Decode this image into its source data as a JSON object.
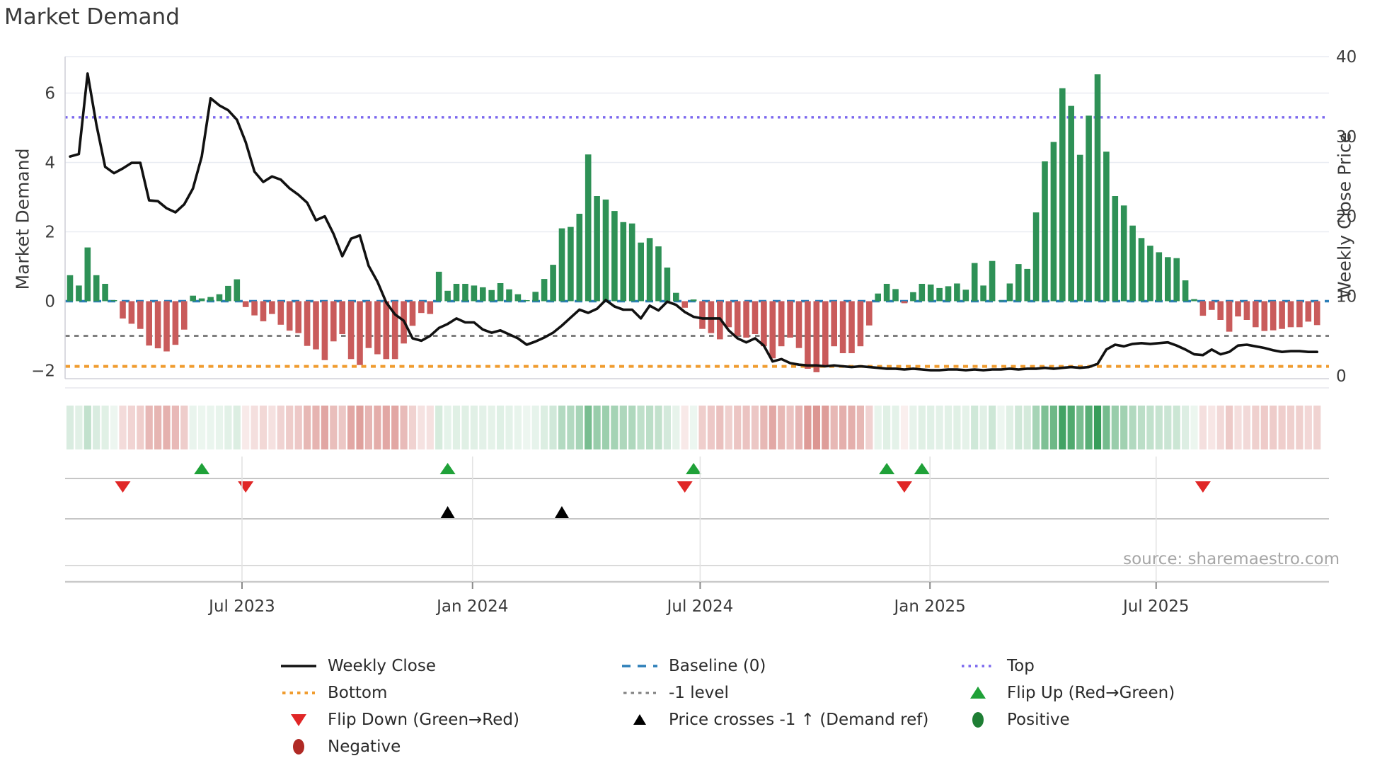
{
  "title": "Market Demand",
  "source": "source: sharemaestro.com",
  "axis": {
    "left_label": "Market Demand",
    "right_label": "Weekly Close Price",
    "left_ticks": [
      {
        "v": 6,
        "label": "6"
      },
      {
        "v": 4,
        "label": "4"
      },
      {
        "v": 2,
        "label": "2"
      },
      {
        "v": 0,
        "label": "0"
      },
      {
        "v": -2,
        "label": "−2"
      }
    ],
    "right_ticks": [
      {
        "v": 40,
        "label": "40"
      },
      {
        "v": 30,
        "label": "30"
      },
      {
        "v": 20,
        "label": "20"
      },
      {
        "v": 10,
        "label": "10"
      },
      {
        "v": 0,
        "label": "0"
      }
    ]
  },
  "colors": {
    "green_bar": "#2e9156",
    "red_bar": "#c95b5b",
    "price_line": "#111111",
    "baseline": "#2c7fb8",
    "top": "#7b68ee",
    "bottom": "#f09c2f",
    "minus1": "#7f7f7f",
    "flip_up": "#1fa138",
    "flip_down": "#e02626",
    "cross": "#000000",
    "positive": "#1e7e34",
    "negative": "#b02a25",
    "grid": "#e9ecf2",
    "spine": "#d0d0d8",
    "sep_line": "#c6c6c6",
    "axis_line": "#c9c9c9",
    "tick": "#3d3d3d",
    "xlabel": "#3a3a3a",
    "source": "#a6a6a6"
  },
  "legend": {
    "items": [
      {
        "type": "line-black",
        "label": "Weekly Close"
      },
      {
        "type": "dash-blue",
        "label": "Baseline (0)"
      },
      {
        "type": "dot-purple",
        "label": "Top"
      },
      {
        "type": "dot-orange",
        "label": "Bottom"
      },
      {
        "type": "dot-gray",
        "label": "-1 level"
      },
      {
        "type": "tri-up-green",
        "label": "Flip Up (Red→Green)"
      },
      {
        "type": "tri-down-red",
        "label": "Flip Down (Green→Red)"
      },
      {
        "type": "tri-up-black",
        "label": "Price crosses -1 ↑ (Demand ref)"
      },
      {
        "type": "circle-green",
        "label": "Positive"
      },
      {
        "type": "circle-red",
        "label": "Negative"
      }
    ]
  },
  "chart_data": {
    "type": "bar+line",
    "title": "Market Demand",
    "ylabel_left": "Market Demand",
    "ylabel_right": "Weekly Close Price",
    "x_unit": "weekly, Feb 2023 – Nov 2025",
    "weeks": 143,
    "x_ticks": [
      {
        "pos": 19.58,
        "label": "Jul 2023"
      },
      {
        "pos": 45.83,
        "label": "Jan 2024"
      },
      {
        "pos": 71.75,
        "label": "Jul 2024"
      },
      {
        "pos": 97.92,
        "label": "Jan 2025"
      },
      {
        "pos": 123.67,
        "label": "Jul 2025"
      }
    ],
    "demand_axis_range": [
      -2.25,
      7.05
    ],
    "price_axis_range": [
      -0.4,
      40.1
    ],
    "ref_lines": {
      "baseline": 0,
      "top": 5.3,
      "bottom": -1.88,
      "minus1": -1
    },
    "demand": [
      0.75,
      0.45,
      1.55,
      0.75,
      0.5,
      0.03,
      -0.5,
      -0.65,
      -0.8,
      -1.28,
      -1.36,
      -1.45,
      -1.26,
      -0.82,
      0.16,
      0.08,
      0.12,
      0.2,
      0.44,
      0.63,
      -0.17,
      -0.41,
      -0.58,
      -0.37,
      -0.68,
      -0.85,
      -0.92,
      -1.29,
      -1.39,
      -1.7,
      -1.16,
      -0.95,
      -1.67,
      -1.84,
      -1.35,
      -1.53,
      -1.67,
      -1.67,
      -1.22,
      -0.71,
      -0.34,
      -0.37,
      0.85,
      0.3,
      0.5,
      0.5,
      0.45,
      0.4,
      0.32,
      0.52,
      0.34,
      0.2,
      0.03,
      0.27,
      0.64,
      1.05,
      2.1,
      2.14,
      2.52,
      4.23,
      3.03,
      2.93,
      2.6,
      2.28,
      2.24,
      1.69,
      1.82,
      1.58,
      0.97,
      0.24,
      -0.19,
      0.05,
      -0.8,
      -0.92,
      -1.1,
      -0.75,
      -1.0,
      -1.05,
      -0.95,
      -1.3,
      -1.65,
      -1.3,
      -1.05,
      -1.35,
      -1.95,
      -2.05,
      -1.9,
      -1.3,
      -1.5,
      -1.5,
      -1.3,
      -0.7,
      0.22,
      0.5,
      0.35,
      -0.06,
      0.26,
      0.5,
      0.48,
      0.38,
      0.43,
      0.51,
      0.33,
      1.1,
      0.45,
      1.16,
      0.02,
      0.51,
      1.07,
      0.93,
      2.56,
      4.03,
      4.59,
      6.14,
      5.63,
      4.22,
      5.35,
      6.54,
      4.31,
      3.03,
      2.76,
      2.18,
      1.82,
      1.6,
      1.41,
      1.27,
      1.24,
      0.6,
      0.06,
      -0.42,
      -0.25,
      -0.54,
      -0.88,
      -0.44,
      -0.54,
      -0.75,
      -0.86,
      -0.84,
      -0.8,
      -0.75,
      -0.75,
      -0.59,
      -0.69
    ],
    "price": [
      27.5,
      27.8,
      37.9,
      31.5,
      26.2,
      25.4,
      26.0,
      26.7,
      26.7,
      22.0,
      21.9,
      21.0,
      20.5,
      21.5,
      23.5,
      27.5,
      34.8,
      33.9,
      33.3,
      32.1,
      29.3,
      25.6,
      24.3,
      25.0,
      24.6,
      23.5,
      22.7,
      21.7,
      19.5,
      20.0,
      17.8,
      15.0,
      17.2,
      17.6,
      13.8,
      11.8,
      9.2,
      7.7,
      6.9,
      4.7,
      4.4,
      5.0,
      6.0,
      6.5,
      7.2,
      6.7,
      6.7,
      5.8,
      5.4,
      5.7,
      5.2,
      4.7,
      3.9,
      4.3,
      4.8,
      5.4,
      6.3,
      7.3,
      8.3,
      7.9,
      8.4,
      9.5,
      8.7,
      8.3,
      8.3,
      7.2,
      8.8,
      8.2,
      9.3,
      8.9,
      8.0,
      7.4,
      7.2,
      7.2,
      7.2,
      5.7,
      4.7,
      4.2,
      4.7,
      3.8,
      1.8,
      2.1,
      1.6,
      1.4,
      1.3,
      1.3,
      1.2,
      1.3,
      1.2,
      1.1,
      1.2,
      1.1,
      1.0,
      0.9,
      0.9,
      0.8,
      0.9,
      0.8,
      0.7,
      0.7,
      0.8,
      0.8,
      0.7,
      0.8,
      0.7,
      0.8,
      0.8,
      0.9,
      0.8,
      0.9,
      0.9,
      1.0,
      0.9,
      1.0,
      1.1,
      1.0,
      1.1,
      1.5,
      3.3,
      3.9,
      3.7,
      4.0,
      4.1,
      4.0,
      4.1,
      4.2,
      3.8,
      3.3,
      2.7,
      2.6,
      3.3,
      2.7,
      3.0,
      3.8,
      3.9,
      3.7,
      3.5,
      3.2,
      3.0,
      3.1,
      3.1,
      3.0,
      3.0
    ],
    "markers": {
      "flip_up_weeks": [
        15,
        43,
        71,
        93,
        97
      ],
      "flip_down_weeks": [
        6,
        20,
        70,
        95,
        129
      ],
      "price_cross_weeks": [
        43,
        56
      ]
    },
    "heatmap": "colormap of weekly demand values (green positive, red negative)"
  }
}
